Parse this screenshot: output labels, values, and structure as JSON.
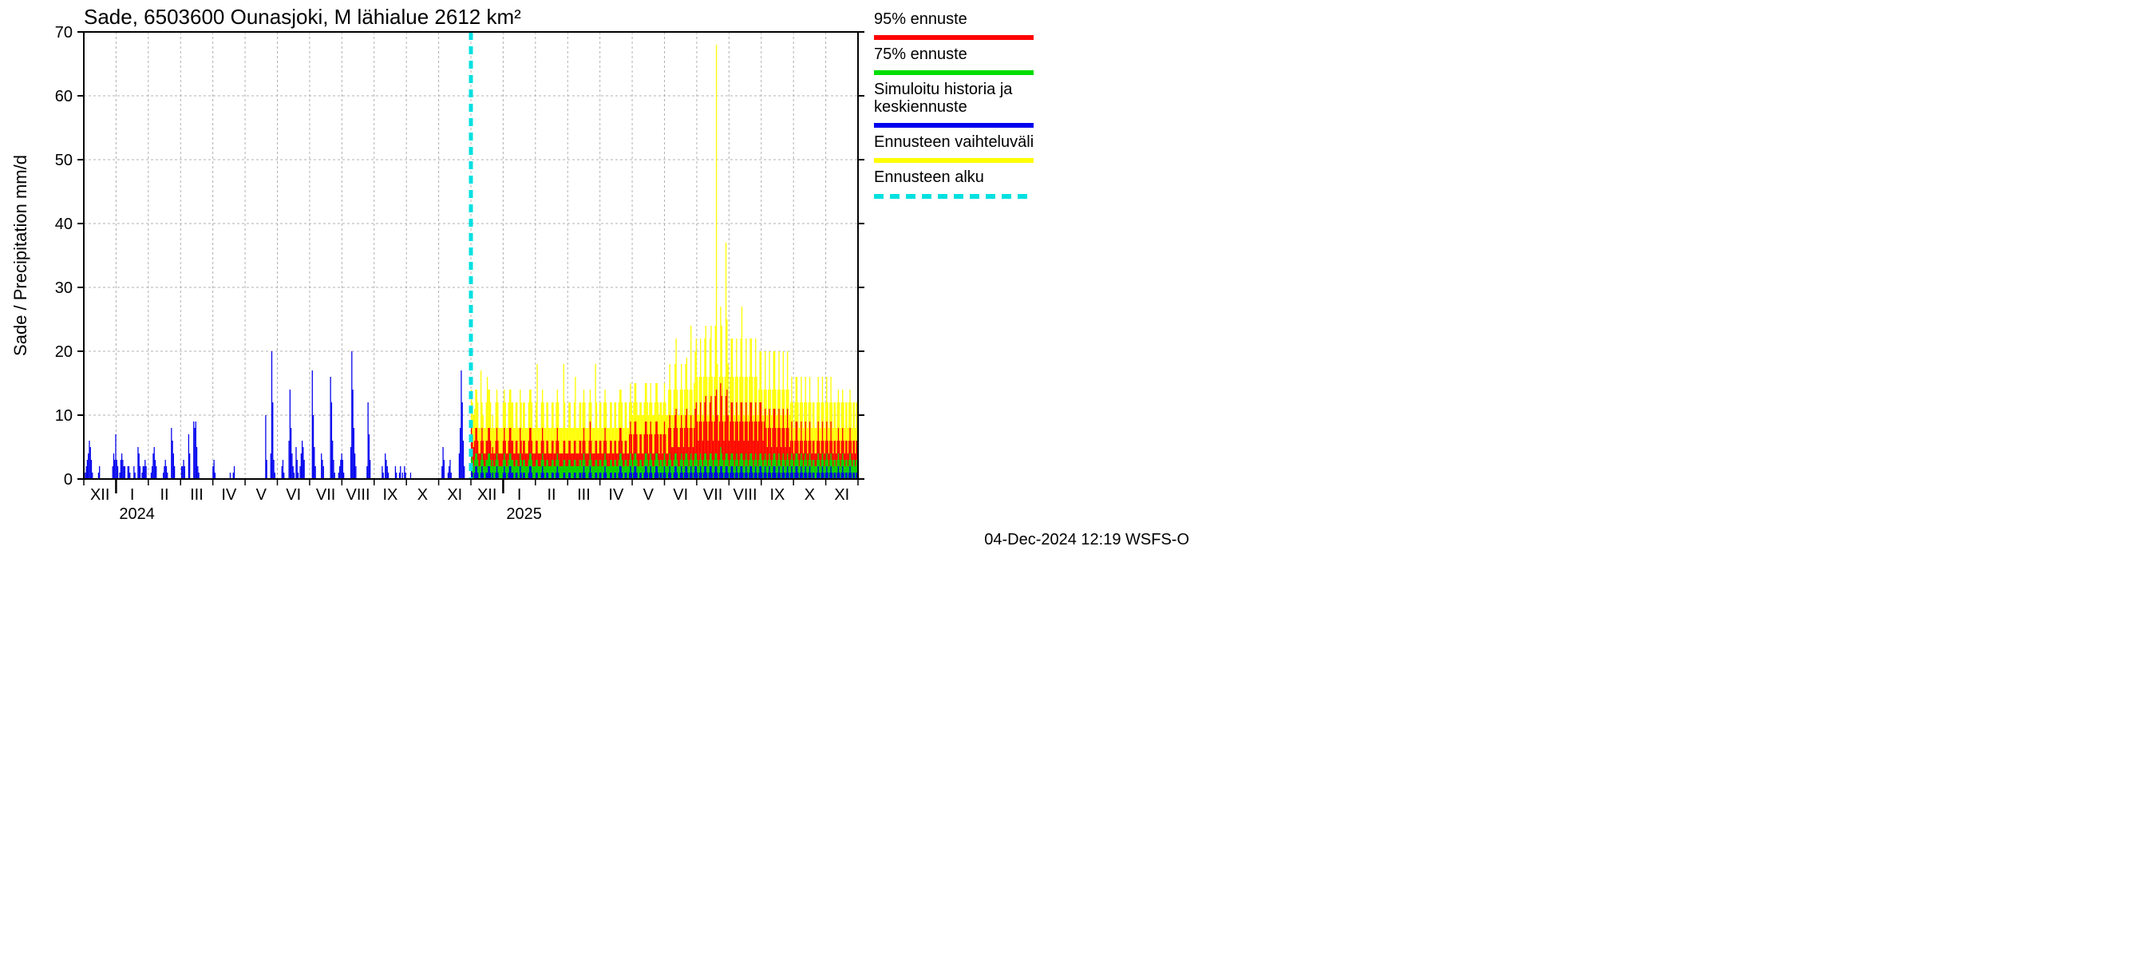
{
  "chart": {
    "type": "bar",
    "title": "Sade, 6503600 Ounasjoki, M lähialue 2612 km²",
    "ylabel": "Sade / Precipitation   mm/d",
    "ylim": [
      0,
      70
    ],
    "ytick_step": 10,
    "background_color": "#ffffff",
    "grid_color": "#b0b0b0",
    "axis_color": "#000000",
    "title_fontsize": 26,
    "ylabel_fontsize": 22,
    "tick_fontsize": 20,
    "footer_fontsize": 20,
    "legend_fontsize": 20,
    "forecast_start_day": 365,
    "total_days": 730,
    "x_months": [
      "XII",
      "I",
      "II",
      "III",
      "IV",
      "V",
      "VI",
      "VII",
      "VIII",
      "IX",
      "X",
      "XI",
      "XII",
      "I",
      "II",
      "III",
      "IV",
      "V",
      "VI",
      "VII",
      "VIII",
      "IX",
      "X",
      "XI"
    ],
    "year_labels": [
      {
        "label": "2024",
        "month_idx": 1
      },
      {
        "label": "2025",
        "month_idx": 13
      }
    ],
    "colors": {
      "p95": "#ff0000",
      "p75": "#00dd00",
      "history_mean": "#0000ee",
      "range": "#ffff00",
      "forecast_start_line": "#00e0e0"
    },
    "legend": [
      {
        "key": "p95",
        "label": "95% ennuste",
        "color": "#ff0000",
        "style": "solid"
      },
      {
        "key": "p75",
        "label": "75% ennuste",
        "color": "#00dd00",
        "style": "solid"
      },
      {
        "key": "hist",
        "label": "Simuloitu historia ja\nkeskiennuste",
        "color": "#0000ee",
        "style": "solid"
      },
      {
        "key": "range",
        "label": "Ennusteen vaihteluväli",
        "color": "#ffff00",
        "style": "solid"
      },
      {
        "key": "start",
        "label": "Ennusteen alku",
        "color": "#00e0e0",
        "style": "dashed"
      }
    ],
    "footer": "04-Dec-2024 12:19 WSFS-O",
    "history_values": [
      0,
      1,
      2,
      3,
      4,
      6,
      5,
      3,
      1,
      0,
      0,
      0,
      0,
      0,
      1,
      2,
      0,
      0,
      0,
      0,
      0,
      0,
      0,
      0,
      0,
      0,
      0,
      0,
      2,
      4,
      3,
      7,
      3,
      2,
      0,
      1,
      3,
      4,
      3,
      2,
      2,
      0,
      0,
      2,
      2,
      1,
      0,
      0,
      0,
      2,
      1,
      0,
      0,
      5,
      4,
      2,
      0,
      1,
      2,
      2,
      3,
      2,
      0,
      0,
      0,
      0,
      1,
      2,
      4,
      5,
      3,
      2,
      0,
      0,
      0,
      0,
      0,
      0,
      1,
      2,
      3,
      2,
      1,
      0,
      0,
      0,
      8,
      6,
      4,
      2,
      0,
      0,
      0,
      0,
      0,
      0,
      2,
      2,
      3,
      2,
      0,
      0,
      0,
      7,
      4,
      0,
      0,
      0,
      9,
      8,
      9,
      5,
      2,
      1,
      0,
      0,
      0,
      0,
      0,
      0,
      0,
      0,
      0,
      0,
      0,
      0,
      0,
      2,
      3,
      1,
      0,
      0,
      0,
      0,
      0,
      0,
      0,
      0,
      0,
      0,
      0,
      0,
      0,
      0,
      1,
      0,
      0,
      1,
      2,
      0,
      0,
      0,
      0,
      0,
      0,
      0,
      0,
      0,
      0,
      0,
      0,
      0,
      0,
      0,
      0,
      0,
      0,
      0,
      0,
      0,
      0,
      0,
      0,
      0,
      0,
      0,
      0,
      0,
      0,
      10,
      3,
      0,
      0,
      0,
      4,
      20,
      12,
      3,
      1,
      0,
      0,
      0,
      0,
      0,
      0,
      2,
      3,
      1,
      0,
      0,
      0,
      0,
      6,
      14,
      8,
      4,
      2,
      1,
      0,
      5,
      3,
      1,
      0,
      2,
      4,
      6,
      5,
      3,
      0,
      0,
      0,
      0,
      0,
      0,
      0,
      17,
      10,
      5,
      2,
      0,
      0,
      0,
      0,
      0,
      4,
      3,
      2,
      0,
      0,
      0,
      0,
      0,
      0,
      16,
      12,
      6,
      3,
      1,
      0,
      0,
      0,
      1,
      2,
      3,
      4,
      3,
      1,
      0,
      0,
      0,
      0,
      0,
      0,
      5,
      20,
      14,
      8,
      4,
      2,
      0,
      0,
      0,
      0,
      0,
      0,
      0,
      0,
      0,
      0,
      2,
      12,
      7,
      3,
      0,
      0,
      0,
      0,
      0,
      0,
      0,
      0,
      0,
      0,
      0,
      2,
      1,
      0,
      4,
      3,
      2,
      1,
      0,
      0,
      0,
      0,
      0,
      0,
      2,
      1,
      0,
      0,
      1,
      2,
      0,
      1,
      0,
      2,
      1,
      0,
      0,
      0,
      0,
      1,
      0,
      0,
      0,
      0,
      0,
      0,
      0,
      0,
      0,
      0,
      0,
      0,
      0,
      0,
      0,
      0,
      0,
      0,
      0,
      0,
      0,
      0,
      0,
      0,
      0,
      0,
      0,
      0,
      0,
      0,
      2,
      5,
      3,
      0,
      0,
      0,
      1,
      2,
      3,
      1,
      0,
      0,
      0,
      0,
      0,
      0,
      0,
      4,
      8,
      17,
      12,
      6,
      2,
      0,
      0,
      0,
      0,
      0,
      0
    ],
    "forecast_mean_values": [
      2,
      1,
      0,
      1,
      2,
      2,
      1,
      0,
      0,
      1,
      2,
      1,
      0,
      0,
      1,
      1,
      2,
      2,
      1,
      0,
      1,
      0,
      0,
      1,
      2,
      1,
      0,
      0,
      0,
      0,
      1,
      2,
      1,
      0,
      0,
      1,
      2,
      2,
      1,
      1,
      0,
      0,
      1,
      1,
      0,
      0,
      2,
      1,
      0,
      1,
      1,
      0,
      0,
      0,
      1,
      2,
      2,
      1,
      0,
      0,
      0,
      1,
      1,
      0,
      0,
      0,
      1,
      2,
      1,
      0,
      0,
      1,
      1,
      0,
      0,
      0,
      1,
      1,
      0,
      0,
      1,
      2,
      1,
      0,
      0,
      0,
      0,
      1,
      1,
      0,
      0,
      0,
      1,
      1,
      0,
      0,
      0,
      1,
      1,
      0,
      0,
      0,
      1,
      1,
      0,
      1,
      2,
      1,
      0,
      0,
      0,
      1,
      2,
      1,
      0,
      0,
      0,
      1,
      1,
      0,
      0,
      1,
      1,
      0,
      0,
      1,
      2,
      1,
      0,
      0,
      0,
      1,
      1,
      0,
      0,
      1,
      1,
      0,
      0,
      1,
      2,
      2,
      1,
      0,
      0,
      1,
      1,
      0,
      0,
      1,
      2,
      1,
      0,
      1,
      2,
      2,
      1,
      0,
      0,
      1,
      1,
      0,
      0,
      1,
      2,
      2,
      1,
      0,
      1,
      2,
      1,
      0,
      0,
      1,
      2,
      2,
      1,
      0,
      1,
      1,
      0,
      1,
      2,
      1,
      0,
      0,
      1,
      2,
      1,
      0,
      0,
      1,
      2,
      2,
      1,
      0,
      0,
      1,
      2,
      1,
      0,
      1,
      2,
      2,
      1,
      0,
      1,
      2,
      1,
      0,
      1,
      2,
      2,
      1,
      0,
      1,
      2,
      1,
      0,
      1,
      2,
      2,
      1,
      0,
      1,
      2,
      2,
      1,
      0,
      1,
      2,
      2,
      1,
      0,
      1,
      2,
      2,
      1,
      0,
      1,
      2,
      2,
      1,
      0,
      1,
      2,
      2,
      1,
      0,
      1,
      2,
      1,
      0,
      1,
      2,
      2,
      1,
      0,
      1,
      2,
      1,
      0,
      1,
      2,
      2,
      1,
      0,
      1,
      2,
      1,
      0,
      1,
      2,
      2,
      1,
      0,
      1,
      2,
      1,
      0,
      1,
      2,
      1,
      0,
      1,
      2,
      2,
      1,
      0,
      1,
      2,
      1,
      0,
      1,
      2,
      1,
      0,
      1,
      2,
      1,
      0,
      1,
      2,
      1,
      0,
      1,
      2,
      2,
      1,
      0,
      1,
      2,
      1,
      0,
      1,
      2,
      1,
      0,
      1,
      2,
      1,
      0,
      1,
      1,
      0,
      0,
      1,
      2,
      1,
      0,
      1,
      2,
      1,
      0,
      1,
      2,
      1,
      0,
      1,
      2,
      1,
      0,
      1,
      1,
      0,
      1,
      2,
      1,
      0,
      1,
      2,
      1,
      0,
      1,
      1,
      0,
      1,
      2,
      1,
      0,
      1,
      1,
      0,
      1,
      1
    ],
    "forecast_p75_values": [
      4,
      3,
      2,
      3,
      4,
      4,
      3,
      2,
      2,
      3,
      4,
      3,
      2,
      2,
      3,
      3,
      4,
      4,
      3,
      2,
      3,
      2,
      2,
      3,
      4,
      3,
      2,
      2,
      2,
      2,
      3,
      4,
      3,
      2,
      2,
      3,
      4,
      4,
      3,
      3,
      2,
      2,
      3,
      3,
      2,
      2,
      4,
      3,
      2,
      3,
      3,
      2,
      2,
      2,
      3,
      4,
      4,
      3,
      2,
      2,
      2,
      3,
      3,
      2,
      2,
      2,
      3,
      4,
      3,
      2,
      2,
      3,
      3,
      2,
      2,
      2,
      3,
      3,
      2,
      2,
      3,
      4,
      3,
      2,
      2,
      2,
      2,
      3,
      3,
      2,
      2,
      2,
      3,
      3,
      2,
      2,
      2,
      3,
      3,
      2,
      2,
      2,
      3,
      3,
      2,
      3,
      4,
      3,
      2,
      2,
      2,
      3,
      4,
      3,
      2,
      2,
      2,
      3,
      3,
      2,
      2,
      3,
      3,
      2,
      2,
      3,
      4,
      3,
      2,
      2,
      2,
      3,
      3,
      2,
      2,
      3,
      3,
      2,
      2,
      3,
      4,
      4,
      3,
      2,
      2,
      3,
      3,
      2,
      2,
      3,
      4,
      3,
      2,
      3,
      4,
      4,
      3,
      2,
      2,
      3,
      3,
      2,
      2,
      3,
      4,
      4,
      3,
      2,
      3,
      4,
      3,
      2,
      2,
      3,
      4,
      4,
      3,
      2,
      3,
      3,
      2,
      3,
      4,
      3,
      2,
      2,
      3,
      4,
      3,
      2,
      2,
      3,
      4,
      4,
      3,
      2,
      2,
      3,
      4,
      3,
      2,
      3,
      4,
      4,
      3,
      2,
      3,
      4,
      3,
      2,
      3,
      4,
      4,
      3,
      2,
      3,
      4,
      3,
      2,
      3,
      4,
      4,
      3,
      2,
      3,
      4,
      4,
      3,
      2,
      3,
      4,
      4,
      3,
      2,
      3,
      5,
      4,
      3,
      2,
      3,
      4,
      4,
      3,
      2,
      3,
      4,
      4,
      3,
      2,
      3,
      4,
      3,
      2,
      3,
      4,
      4,
      3,
      2,
      3,
      4,
      3,
      2,
      3,
      4,
      4,
      3,
      2,
      3,
      4,
      3,
      2,
      3,
      4,
      4,
      3,
      2,
      3,
      4,
      3,
      2,
      3,
      4,
      3,
      2,
      3,
      4,
      4,
      3,
      2,
      3,
      4,
      3,
      2,
      3,
      4,
      3,
      2,
      3,
      4,
      3,
      2,
      3,
      4,
      3,
      2,
      3,
      4,
      4,
      3,
      2,
      3,
      4,
      3,
      2,
      3,
      4,
      3,
      2,
      3,
      4,
      3,
      2,
      3,
      3,
      2,
      2,
      3,
      4,
      3,
      2,
      3,
      4,
      3,
      2,
      3,
      4,
      3,
      2,
      3,
      4,
      3,
      2,
      3,
      3,
      2,
      3,
      4,
      3,
      2,
      3,
      4,
      3,
      2,
      3,
      3,
      2,
      3,
      4,
      3,
      2,
      3,
      3,
      2,
      3,
      3
    ],
    "forecast_p95_values": [
      8,
      7,
      5,
      6,
      8,
      8,
      6,
      4,
      4,
      6,
      8,
      6,
      4,
      4,
      6,
      6,
      8,
      8,
      6,
      4,
      5,
      4,
      4,
      6,
      8,
      6,
      4,
      4,
      4,
      4,
      6,
      8,
      6,
      4,
      4,
      6,
      8,
      8,
      6,
      6,
      4,
      4,
      6,
      6,
      4,
      4,
      8,
      6,
      4,
      6,
      6,
      4,
      4,
      4,
      6,
      8,
      8,
      6,
      4,
      4,
      4,
      6,
      6,
      4,
      4,
      4,
      6,
      8,
      6,
      4,
      4,
      6,
      6,
      4,
      4,
      4,
      6,
      6,
      4,
      4,
      6,
      8,
      6,
      4,
      4,
      4,
      4,
      6,
      6,
      4,
      4,
      4,
      6,
      6,
      4,
      4,
      4,
      6,
      6,
      4,
      4,
      4,
      6,
      6,
      4,
      6,
      8,
      6,
      4,
      4,
      4,
      6,
      9,
      6,
      4,
      4,
      4,
      6,
      6,
      4,
      4,
      6,
      6,
      4,
      4,
      6,
      8,
      6,
      4,
      4,
      4,
      6,
      6,
      4,
      4,
      6,
      6,
      4,
      4,
      6,
      8,
      8,
      6,
      4,
      4,
      6,
      6,
      4,
      4,
      7,
      9,
      7,
      4,
      7,
      9,
      9,
      7,
      4,
      4,
      7,
      7,
      4,
      4,
      7,
      9,
      9,
      7,
      4,
      7,
      9,
      7,
      4,
      4,
      7,
      9,
      9,
      7,
      4,
      7,
      7,
      4,
      7,
      9,
      7,
      4,
      4,
      8,
      10,
      8,
      5,
      5,
      8,
      10,
      11,
      8,
      5,
      5,
      8,
      10,
      8,
      5,
      8,
      10,
      11,
      8,
      5,
      8,
      10,
      8,
      5,
      8,
      11,
      12,
      9,
      6,
      9,
      12,
      9,
      6,
      9,
      12,
      13,
      9,
      6,
      9,
      12,
      13,
      9,
      6,
      9,
      13,
      14,
      10,
      6,
      9,
      15,
      13,
      9,
      6,
      9,
      13,
      14,
      10,
      6,
      9,
      12,
      12,
      9,
      6,
      9,
      12,
      9,
      6,
      9,
      12,
      12,
      9,
      6,
      9,
      12,
      9,
      6,
      9,
      12,
      12,
      9,
      6,
      9,
      12,
      9,
      6,
      9,
      12,
      12,
      9,
      6,
      9,
      11,
      8,
      5,
      8,
      11,
      8,
      5,
      8,
      11,
      11,
      8,
      5,
      8,
      11,
      8,
      5,
      8,
      11,
      8,
      5,
      8,
      11,
      8,
      5,
      6,
      9,
      6,
      4,
      6,
      9,
      9,
      6,
      4,
      6,
      9,
      6,
      4,
      6,
      9,
      6,
      4,
      6,
      9,
      6,
      4,
      6,
      6,
      4,
      4,
      6,
      9,
      6,
      4,
      6,
      9,
      6,
      4,
      6,
      9,
      6,
      4,
      6,
      9,
      6,
      4,
      6,
      6,
      4,
      6,
      8,
      6,
      4,
      6,
      8,
      6,
      4,
      6,
      6,
      4,
      6,
      8,
      6,
      4,
      6,
      6,
      4,
      6,
      6
    ],
    "forecast_range_values": [
      14,
      12,
      10,
      11,
      14,
      14,
      12,
      8,
      8,
      17,
      12,
      10,
      8,
      8,
      12,
      16,
      14,
      14,
      12,
      8,
      10,
      8,
      8,
      12,
      14,
      12,
      8,
      8,
      8,
      8,
      12,
      14,
      12,
      8,
      8,
      12,
      14,
      14,
      12,
      12,
      8,
      8,
      12,
      12,
      8,
      8,
      14,
      12,
      8,
      12,
      12,
      8,
      8,
      8,
      12,
      14,
      14,
      12,
      8,
      8,
      8,
      12,
      18,
      8,
      8,
      8,
      12,
      14,
      12,
      8,
      8,
      12,
      12,
      8,
      8,
      8,
      12,
      12,
      8,
      8,
      12,
      14,
      12,
      8,
      8,
      8,
      8,
      18,
      12,
      8,
      8,
      8,
      12,
      12,
      8,
      8,
      8,
      12,
      16,
      8,
      8,
      8,
      12,
      12,
      8,
      12,
      14,
      12,
      8,
      8,
      8,
      12,
      14,
      12,
      8,
      8,
      8,
      18,
      12,
      8,
      8,
      12,
      12,
      8,
      8,
      12,
      14,
      12,
      8,
      8,
      8,
      12,
      12,
      8,
      8,
      12,
      12,
      8,
      8,
      12,
      14,
      14,
      12,
      8,
      8,
      12,
      12,
      8,
      8,
      12,
      15,
      12,
      10,
      12,
      15,
      15,
      12,
      10,
      10,
      12,
      12,
      10,
      10,
      12,
      15,
      15,
      12,
      10,
      12,
      15,
      12,
      10,
      10,
      12,
      15,
      15,
      12,
      10,
      12,
      12,
      10,
      12,
      15,
      12,
      10,
      10,
      14,
      18,
      14,
      10,
      10,
      14,
      18,
      22,
      14,
      10,
      10,
      14,
      18,
      14,
      10,
      14,
      18,
      19,
      14,
      10,
      14,
      24,
      14,
      10,
      15,
      20,
      22,
      16,
      10,
      16,
      22,
      16,
      10,
      16,
      22,
      24,
      16,
      10,
      16,
      22,
      24,
      16,
      10,
      16,
      24,
      68,
      18,
      10,
      16,
      27,
      24,
      16,
      10,
      16,
      37,
      25,
      18,
      10,
      16,
      22,
      22,
      16,
      10,
      16,
      22,
      16,
      10,
      16,
      22,
      27,
      16,
      10,
      16,
      22,
      16,
      10,
      16,
      22,
      22,
      16,
      10,
      16,
      22,
      16,
      10,
      14,
      20,
      20,
      14,
      10,
      14,
      20,
      14,
      10,
      14,
      20,
      14,
      10,
      14,
      20,
      20,
      14,
      10,
      14,
      20,
      14,
      10,
      14,
      20,
      14,
      10,
      14,
      20,
      14,
      10,
      12,
      16,
      12,
      8,
      12,
      16,
      16,
      12,
      8,
      12,
      16,
      12,
      8,
      12,
      16,
      12,
      8,
      12,
      16,
      12,
      8,
      12,
      12,
      8,
      8,
      12,
      16,
      12,
      8,
      12,
      16,
      12,
      8,
      12,
      16,
      12,
      8,
      12,
      16,
      12,
      8,
      12,
      12,
      8,
      12,
      14,
      12,
      8,
      12,
      14,
      12,
      8,
      12,
      12,
      8,
      12,
      14,
      12,
      8,
      12,
      12,
      8,
      12,
      12
    ]
  }
}
